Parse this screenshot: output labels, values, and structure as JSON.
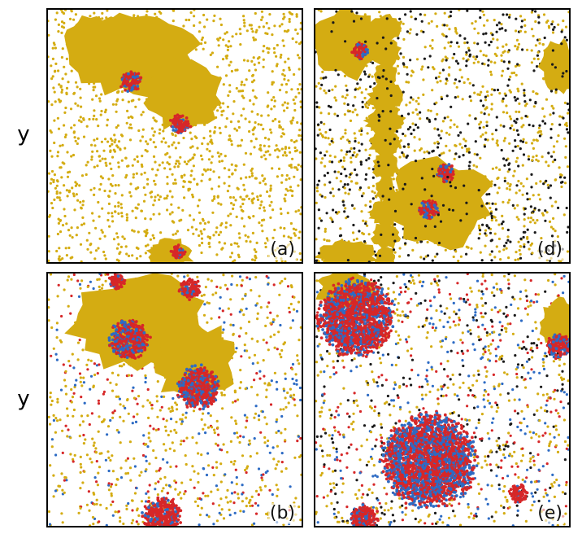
{
  "y_axis_label": "y",
  "colors": {
    "gold": "#d4ac12",
    "red": "#d62728",
    "blue": "#2d6bc4",
    "black": "#1a1a1a"
  },
  "panels": [
    {
      "id": "a",
      "label": "(a)",
      "sparse_density": "medium",
      "clusters": [
        {
          "type": "gold",
          "shape": "large-blob"
        },
        {
          "type": "red-blue",
          "shape": "small"
        },
        {
          "type": "red-blue",
          "shape": "small"
        },
        {
          "type": "gold",
          "shape": "small-bottom"
        }
      ]
    },
    {
      "id": "d",
      "label": "(d)",
      "sparse_density": "high",
      "clusters": [
        {
          "type": "gold",
          "shape": "corner-blob"
        },
        {
          "type": "gold",
          "shape": "star-blob"
        },
        {
          "type": "red-blue",
          "shape": "small"
        }
      ]
    },
    {
      "id": "b",
      "label": "(b)",
      "sparse_density": "medium",
      "clusters": [
        {
          "type": "gold",
          "shape": "large-blob"
        },
        {
          "type": "red-blue",
          "shape": "medium"
        },
        {
          "type": "red-blue",
          "shape": "medium"
        },
        {
          "type": "red-blue",
          "shape": "bottom"
        }
      ]
    },
    {
      "id": "e",
      "label": "(e)",
      "sparse_density": "high",
      "clusters": [
        {
          "type": "red-blue",
          "shape": "large"
        },
        {
          "type": "red-blue",
          "shape": "large-center"
        },
        {
          "type": "red-blue",
          "shape": "edge"
        }
      ]
    }
  ]
}
